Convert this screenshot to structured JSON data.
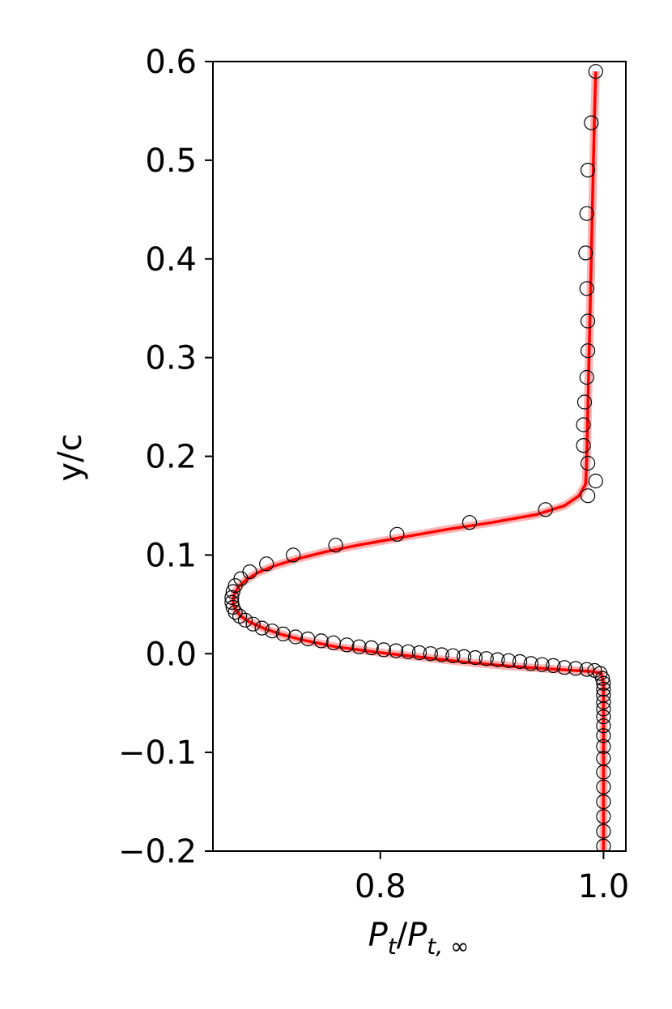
{
  "chart_data": {
    "type": "line",
    "xlabel": "P_t/P_{t,∞}",
    "xlabel_parts": {
      "main": "P",
      "sub1": "t",
      "slash": "/",
      "main2": "P",
      "sub2": "t, ∞"
    },
    "ylabel": "y/c",
    "xlim": [
      0.65,
      1.02
    ],
    "ylim": [
      -0.2,
      0.6
    ],
    "xticks": [
      0.8,
      1.0
    ],
    "xtick_labels": [
      "0.8",
      "1.0"
    ],
    "yticks": [
      -0.2,
      -0.1,
      0.0,
      0.1,
      0.2,
      0.3,
      0.4,
      0.5,
      0.6
    ],
    "ytick_labels": [
      "−0.2",
      "−0.1",
      "0.0",
      "0.1",
      "0.2",
      "0.3",
      "0.4",
      "0.5",
      "0.6"
    ],
    "grid": false,
    "series": [
      {
        "kind": "line",
        "color": "#ff0000",
        "band_color": "#ff0000",
        "points": [
          [
            1.0,
            -0.2
          ],
          [
            1.0,
            -0.1
          ],
          [
            1.0,
            -0.03
          ],
          [
            0.998,
            -0.02
          ],
          [
            0.99,
            -0.018
          ],
          [
            0.96,
            -0.016
          ],
          [
            0.92,
            -0.013
          ],
          [
            0.88,
            -0.009
          ],
          [
            0.84,
            -0.004
          ],
          [
            0.8,
            0.001
          ],
          [
            0.76,
            0.007
          ],
          [
            0.73,
            0.014
          ],
          [
            0.71,
            0.02
          ],
          [
            0.695,
            0.026
          ],
          [
            0.683,
            0.032
          ],
          [
            0.675,
            0.038
          ],
          [
            0.67,
            0.045
          ],
          [
            0.668,
            0.052
          ],
          [
            0.669,
            0.06
          ],
          [
            0.673,
            0.068
          ],
          [
            0.68,
            0.075
          ],
          [
            0.69,
            0.082
          ],
          [
            0.705,
            0.089
          ],
          [
            0.725,
            0.096
          ],
          [
            0.75,
            0.103
          ],
          [
            0.78,
            0.11
          ],
          [
            0.82,
            0.118
          ],
          [
            0.86,
            0.126
          ],
          [
            0.9,
            0.133
          ],
          [
            0.94,
            0.141
          ],
          [
            0.965,
            0.15
          ],
          [
            0.978,
            0.16
          ],
          [
            0.984,
            0.172
          ],
          [
            0.985,
            0.2
          ],
          [
            0.986,
            0.25
          ],
          [
            0.987,
            0.3
          ],
          [
            0.988,
            0.35
          ],
          [
            0.989,
            0.4
          ],
          [
            0.99,
            0.45
          ],
          [
            0.991,
            0.5
          ],
          [
            0.992,
            0.55
          ],
          [
            0.993,
            0.59
          ]
        ]
      },
      {
        "kind": "scatter",
        "marker": "open-circle",
        "color": "#000000",
        "points": [
          [
            0.993,
            0.59
          ],
          [
            0.989,
            0.538
          ],
          [
            0.986,
            0.49
          ],
          [
            0.985,
            0.446
          ],
          [
            0.984,
            0.406
          ],
          [
            0.985,
            0.37
          ],
          [
            0.986,
            0.337
          ],
          [
            0.986,
            0.307
          ],
          [
            0.985,
            0.28
          ],
          [
            0.983,
            0.255
          ],
          [
            0.982,
            0.232
          ],
          [
            0.982,
            0.211
          ],
          [
            0.986,
            0.193
          ],
          [
            0.993,
            0.175
          ],
          [
            0.986,
            0.16
          ],
          [
            0.948,
            0.146
          ],
          [
            0.88,
            0.133
          ],
          [
            0.815,
            0.121
          ],
          [
            0.76,
            0.11
          ],
          [
            0.722,
            0.1
          ],
          [
            0.698,
            0.091
          ],
          [
            0.683,
            0.083
          ],
          [
            0.675,
            0.076
          ],
          [
            0.67,
            0.069
          ],
          [
            0.668,
            0.063
          ],
          [
            0.667,
            0.057
          ],
          [
            0.667,
            0.052
          ],
          [
            0.668,
            0.047
          ],
          [
            0.67,
            0.042
          ],
          [
            0.674,
            0.038
          ],
          [
            0.679,
            0.034
          ],
          [
            0.686,
            0.03
          ],
          [
            0.694,
            0.026
          ],
          [
            0.703,
            0.023
          ],
          [
            0.713,
            0.02
          ],
          [
            0.724,
            0.017
          ],
          [
            0.735,
            0.015
          ],
          [
            0.747,
            0.013
          ],
          [
            0.758,
            0.011
          ],
          [
            0.77,
            0.009
          ],
          [
            0.781,
            0.007
          ],
          [
            0.792,
            0.006
          ],
          [
            0.803,
            0.004
          ],
          [
            0.814,
            0.003
          ],
          [
            0.825,
            0.002
          ],
          [
            0.835,
            0.001
          ],
          [
            0.845,
            0.0
          ],
          [
            0.855,
            -0.001
          ],
          [
            0.865,
            -0.002
          ],
          [
            0.875,
            -0.003
          ],
          [
            0.885,
            -0.004
          ],
          [
            0.895,
            -0.005
          ],
          [
            0.905,
            -0.006
          ],
          [
            0.915,
            -0.007
          ],
          [
            0.925,
            -0.008
          ],
          [
            0.935,
            -0.01
          ],
          [
            0.945,
            -0.011
          ],
          [
            0.955,
            -0.012
          ],
          [
            0.965,
            -0.014
          ],
          [
            0.975,
            -0.015
          ],
          [
            0.985,
            -0.016
          ],
          [
            0.992,
            -0.017
          ],
          [
            0.997,
            -0.02
          ],
          [
            0.999,
            -0.025
          ],
          [
            1.0,
            -0.03
          ],
          [
            1.0,
            -0.036
          ],
          [
            1.0,
            -0.042
          ],
          [
            1.0,
            -0.049
          ],
          [
            1.0,
            -0.056
          ],
          [
            1.0,
            -0.064
          ],
          [
            1.0,
            -0.073
          ],
          [
            1.0,
            -0.083
          ],
          [
            1.0,
            -0.094
          ],
          [
            1.0,
            -0.106
          ],
          [
            1.0,
            -0.12
          ],
          [
            1.0,
            -0.135
          ],
          [
            1.0,
            -0.15
          ],
          [
            1.0,
            -0.165
          ],
          [
            1.0,
            -0.18
          ],
          [
            1.0,
            -0.195
          ]
        ]
      }
    ]
  }
}
